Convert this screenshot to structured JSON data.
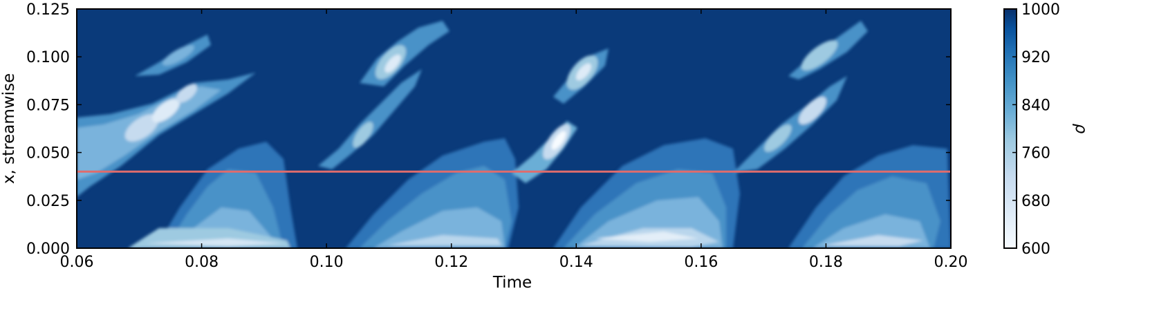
{
  "chart_data": {
    "type": "heatmap",
    "title": "",
    "xlabel": "Time",
    "ylabel": "x, streamwise",
    "xlim": [
      0.06,
      0.2
    ],
    "ylim": [
      0.0,
      0.125
    ],
    "xticks": [
      "0.06",
      "0.08",
      "0.10",
      "0.12",
      "0.14",
      "0.16",
      "0.18",
      "0.20"
    ],
    "yticks": [
      "0.000",
      "0.025",
      "0.050",
      "0.075",
      "0.100",
      "0.125"
    ],
    "colorbar": {
      "label": "ρ",
      "range": [
        600,
        1000
      ],
      "ticks": [
        "600",
        "680",
        "760",
        "840",
        "920",
        "1000"
      ],
      "levels": [
        600,
        640,
        680,
        720,
        760,
        800,
        840,
        880,
        920,
        960,
        1000
      ],
      "colormap": [
        "#f7fbff",
        "#deebf7",
        "#c6dbef",
        "#9ecae1",
        "#6baed6",
        "#4292c6",
        "#2171b5",
        "#08519c",
        "#08306b"
      ]
    },
    "reference_line": {
      "y": 0.04,
      "color": "#e06c6c"
    },
    "background_density": 1000,
    "features": [
      {
        "kind": "plume",
        "t": 0.07,
        "x": 0.058,
        "rho": 660
      },
      {
        "kind": "plume",
        "t": 0.078,
        "x": 0.08,
        "rho": 720
      },
      {
        "kind": "plume",
        "t": 0.085,
        "x": 0.105,
        "rho": 780
      },
      {
        "kind": "plume",
        "t": 0.105,
        "x": 0.062,
        "rho": 760
      },
      {
        "kind": "plume",
        "t": 0.111,
        "x": 0.098,
        "rho": 680
      },
      {
        "kind": "plume",
        "t": 0.136,
        "x": 0.055,
        "rho": 640
      },
      {
        "kind": "plume",
        "t": 0.143,
        "x": 0.095,
        "rho": 660
      },
      {
        "kind": "plume",
        "t": 0.177,
        "x": 0.058,
        "rho": 660
      },
      {
        "kind": "plume",
        "t": 0.183,
        "x": 0.1,
        "rho": 740
      },
      {
        "kind": "fan",
        "t": 0.085,
        "x": 0.02,
        "rho": 760
      },
      {
        "kind": "fan",
        "t": 0.12,
        "x": 0.022,
        "rho": 720
      },
      {
        "kind": "fan",
        "t": 0.15,
        "x": 0.022,
        "rho": 680
      },
      {
        "kind": "fan",
        "t": 0.19,
        "x": 0.02,
        "rho": 720
      }
    ]
  }
}
